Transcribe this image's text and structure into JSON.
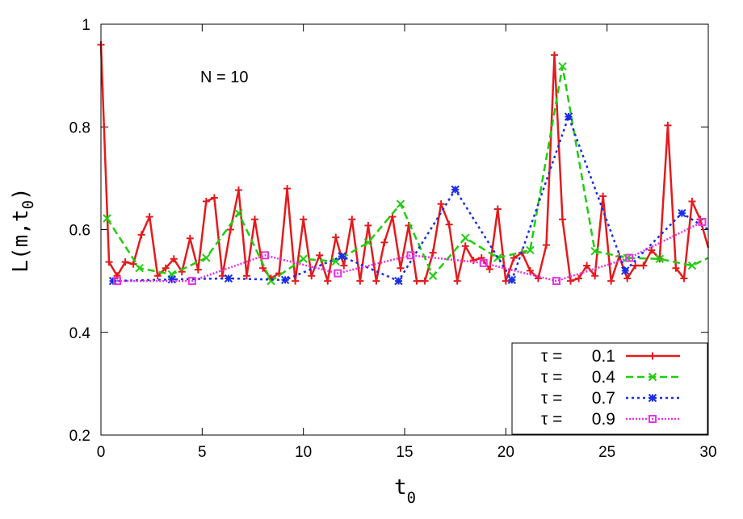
{
  "chart_data": {
    "type": "line",
    "xlabel": {
      "main": "t",
      "sub": "0"
    },
    "ylabel": {
      "prefix": "L(m,t",
      "sub": "0",
      "suffix": ")"
    },
    "annotation": "N = 10",
    "xlim": [
      0,
      30
    ],
    "ylim": [
      0.2,
      1.0
    ],
    "xticks": [
      0,
      5,
      10,
      15,
      20,
      25,
      30
    ],
    "yticks": [
      0.2,
      0.4,
      0.6,
      0.8,
      1.0
    ],
    "ytick_labels": [
      "0.2",
      "0.4",
      "0.6",
      "0.8",
      "1"
    ],
    "grid": false,
    "legend_position": "bottom-right",
    "series": [
      {
        "name": "τ = 0.1",
        "label_tau": "τ =",
        "label_value": "0.1",
        "color": "#e41a1c",
        "dash": "none",
        "marker": "plus",
        "x": [
          0.0,
          0.4,
          0.8,
          1.2,
          1.6,
          2.0,
          2.4,
          2.8,
          3.2,
          3.6,
          4.0,
          4.4,
          4.8,
          5.2,
          5.6,
          6.0,
          6.4,
          6.8,
          7.2,
          7.6,
          8.0,
          8.4,
          8.8,
          9.2,
          9.6,
          10.0,
          10.4,
          10.8,
          11.2,
          11.6,
          12.0,
          12.4,
          12.8,
          13.2,
          13.6,
          14.0,
          14.4,
          14.8,
          15.2,
          15.6,
          16.0,
          16.4,
          16.8,
          17.2,
          17.6,
          18.0,
          18.4,
          18.8,
          19.2,
          19.6,
          20.0,
          20.4,
          20.8,
          21.2,
          21.6,
          22.0,
          22.4,
          22.8,
          23.2,
          23.6,
          24.0,
          24.4,
          24.8,
          25.2,
          25.6,
          26.0,
          26.4,
          26.8,
          27.2,
          27.6,
          28.0,
          28.4,
          28.8,
          29.2,
          29.6,
          30.0
        ],
        "y": [
          0.96,
          0.537,
          0.51,
          0.537,
          0.533,
          0.59,
          0.625,
          0.51,
          0.525,
          0.543,
          0.518,
          0.583,
          0.522,
          0.655,
          0.662,
          0.51,
          0.6,
          0.677,
          0.51,
          0.62,
          0.525,
          0.505,
          0.515,
          0.68,
          0.5,
          0.62,
          0.51,
          0.55,
          0.5,
          0.585,
          0.53,
          0.62,
          0.5,
          0.608,
          0.5,
          0.575,
          0.625,
          0.525,
          0.608,
          0.5,
          0.5,
          0.555,
          0.65,
          0.61,
          0.5,
          0.568,
          0.54,
          0.545,
          0.523,
          0.64,
          0.5,
          0.545,
          0.555,
          0.52,
          0.505,
          0.57,
          0.94,
          0.62,
          0.5,
          0.505,
          0.53,
          0.51,
          0.665,
          0.5,
          0.548,
          0.505,
          0.53,
          0.53,
          0.56,
          0.543,
          0.803,
          0.525,
          0.505,
          0.655,
          0.62,
          0.565
        ]
      },
      {
        "name": "τ = 0.4",
        "label_tau": "τ =",
        "label_value": "0.4",
        "color": "#1fce0e",
        "dash": "9,5",
        "marker": "x",
        "x": [
          0.3,
          1.9,
          3.5,
          5.2,
          6.8,
          8.4,
          10.0,
          11.6,
          13.2,
          14.8,
          16.4,
          18.0,
          19.6,
          21.2,
          22.8,
          24.4,
          26.0,
          27.6,
          29.2,
          30.0
        ],
        "y": [
          0.622,
          0.525,
          0.513,
          0.545,
          0.632,
          0.5,
          0.543,
          0.538,
          0.575,
          0.65,
          0.51,
          0.584,
          0.545,
          0.56,
          0.918,
          0.558,
          0.545,
          0.543,
          0.53,
          0.545
        ]
      },
      {
        "name": "τ = 0.7",
        "label_tau": "τ =",
        "label_value": "0.7",
        "color": "#1a2de6",
        "dash": "3,4",
        "marker": "star",
        "x": [
          0.6,
          3.5,
          6.3,
          9.1,
          11.9,
          14.7,
          17.5,
          20.3,
          23.1,
          25.9,
          28.7,
          30.0
        ],
        "y": [
          0.5,
          0.503,
          0.505,
          0.502,
          0.548,
          0.5,
          0.678,
          0.502,
          0.82,
          0.52,
          0.632,
          0.6
        ]
      },
      {
        "name": "τ = 0.9",
        "label_tau": "τ =",
        "label_value": "0.9",
        "color": "#e633e6",
        "dash": "2,2",
        "marker": "square",
        "x": [
          0.8,
          4.5,
          8.1,
          11.7,
          15.3,
          18.9,
          22.5,
          26.1,
          29.7
        ],
        "y": [
          0.5,
          0.5,
          0.55,
          0.515,
          0.55,
          0.535,
          0.5,
          0.545,
          0.615
        ]
      }
    ]
  }
}
